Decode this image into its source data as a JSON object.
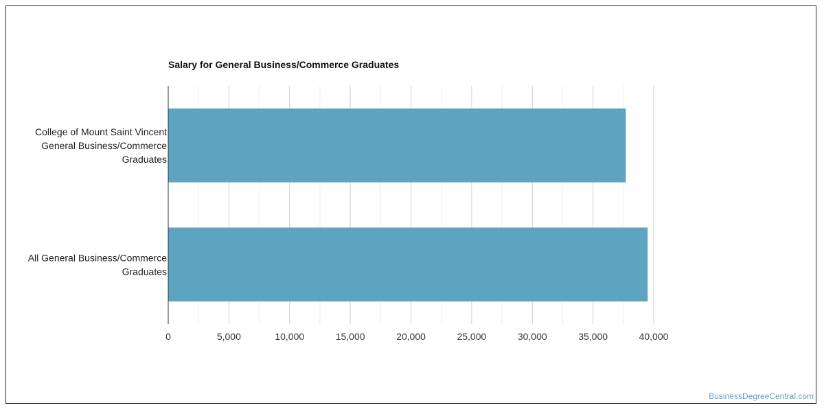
{
  "chart_data": {
    "type": "bar",
    "orientation": "horizontal",
    "title": "Salary for General Business/Commerce Graduates",
    "xlabel": "",
    "ylabel": "",
    "categories": [
      [
        "College of Mount Saint Vincent",
        "General Business/Commerce",
        "Graduates"
      ],
      [
        "All General Business/Commerce",
        "Graduates"
      ]
    ],
    "values": [
      37700,
      39500
    ],
    "xlim": [
      0,
      40000
    ],
    "xticks": [
      0,
      5000,
      10000,
      15000,
      20000,
      25000,
      30000,
      35000,
      40000
    ],
    "xtick_labels": [
      "0",
      "5,000",
      "10,000",
      "15,000",
      "20,000",
      "25,000",
      "30,000",
      "35,000",
      "40,000"
    ],
    "grid": true,
    "legend": "none",
    "bar_color": "#5ea3c0"
  },
  "watermark": "BusinessDegreeCentral.com"
}
